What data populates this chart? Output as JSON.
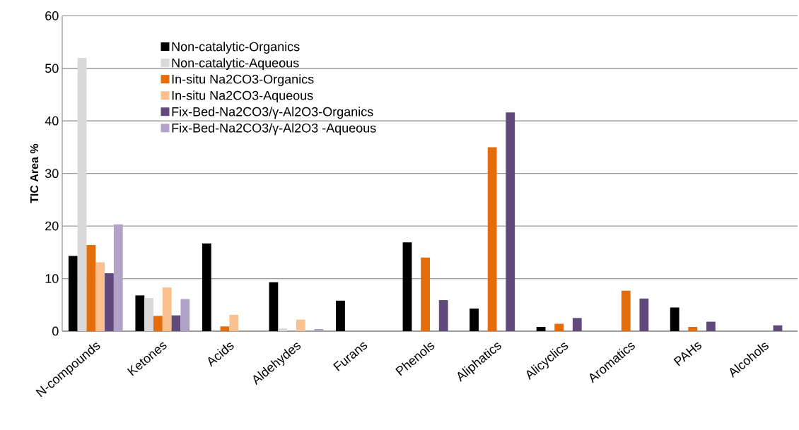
{
  "chart_data": {
    "type": "bar",
    "ylabel": "TIC Area %",
    "categories": [
      "N-compounds",
      "Ketones",
      "Acids",
      "Aldehydes",
      "Furans",
      "Phenols",
      "Aliphatics",
      "Alicyclics",
      "Aromatics",
      "PAHs",
      "Alcohols"
    ],
    "series": [
      {
        "name": "Non-catalytic-Organics",
        "color": "#000000",
        "values": [
          14.3,
          6.8,
          16.7,
          9.3,
          5.8,
          16.9,
          4.3,
          0.8,
          null,
          4.5,
          null
        ]
      },
      {
        "name": "Non-catalytic-Aqueous",
        "color": "#d9d9d9",
        "values": [
          52,
          6.3,
          null,
          0.5,
          null,
          null,
          null,
          null,
          null,
          null,
          null
        ]
      },
      {
        "name": "In-situ Na2CO3-Organics",
        "color": "#e46c0a",
        "values": [
          16.4,
          2.9,
          0.9,
          null,
          null,
          14.0,
          35.0,
          1.4,
          7.7,
          0.8,
          null
        ]
      },
      {
        "name": "In-situ Na2CO3-Aqueous",
        "color": "#fac090",
        "values": [
          13.1,
          8.3,
          3.1,
          2.2,
          null,
          null,
          null,
          null,
          null,
          null,
          null
        ]
      },
      {
        "name": "Fix-Bed-Na2CO3/γ-Al2O3-Organics",
        "color": "#604a7b",
        "values": [
          11.0,
          3.0,
          null,
          null,
          null,
          5.9,
          41.6,
          2.5,
          6.2,
          1.8,
          1.1
        ]
      },
      {
        "name": "Fix-Bed-Na2CO3/γ-Al2O3 -Aqueous",
        "color": "#b3a2c7",
        "values": [
          20.3,
          6.1,
          null,
          0.4,
          null,
          null,
          null,
          null,
          null,
          null,
          null
        ]
      }
    ],
    "ylim": [
      0,
      60
    ],
    "yticks": [
      0,
      10,
      20,
      30,
      40,
      50,
      60
    ],
    "grid": "y",
    "legend": "top left"
  }
}
